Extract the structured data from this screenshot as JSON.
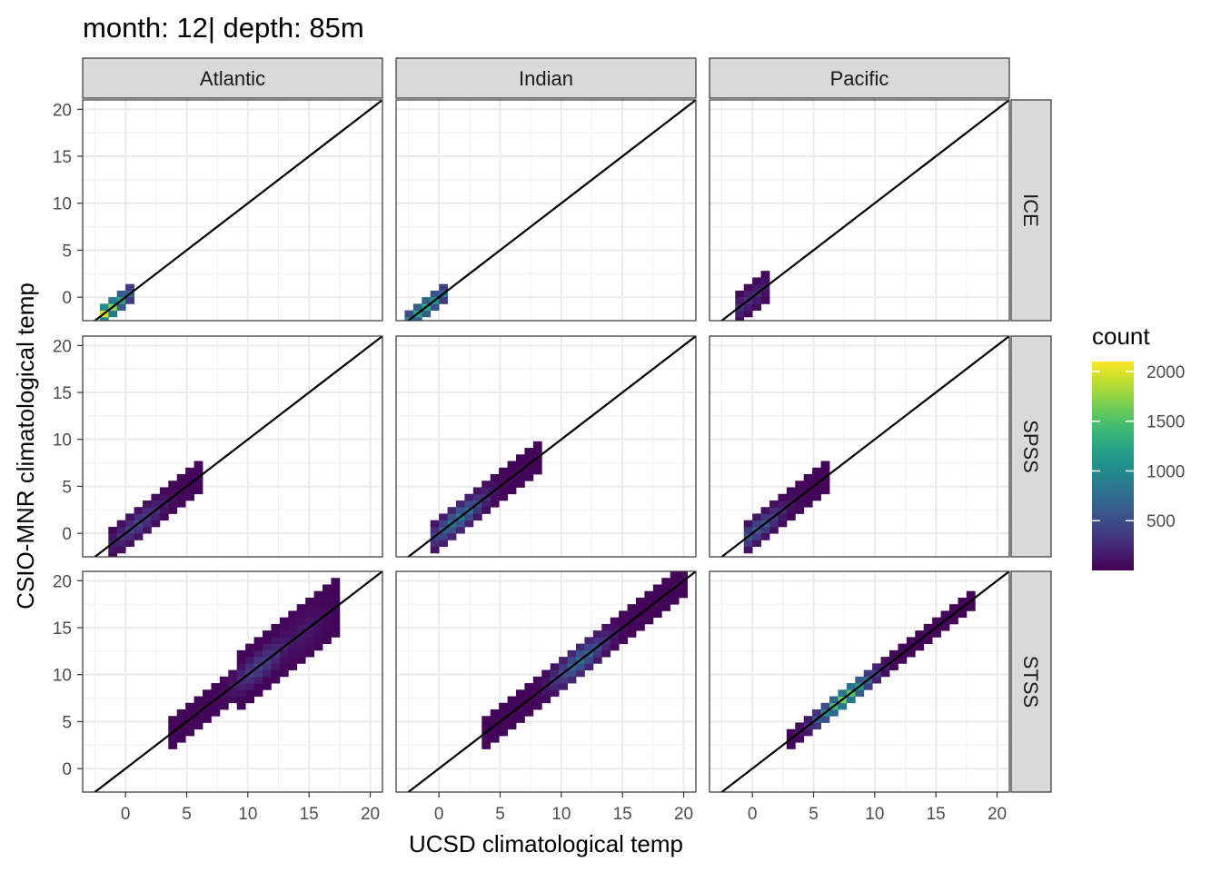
{
  "chart_data": {
    "type": "heatmap",
    "subtype": "binned-2d-histogram-facet-grid",
    "title": "month: 12| depth: 85m",
    "xlabel": "UCSD climatological temp",
    "ylabel": "CSIO-MNR climatological temp",
    "xlim": [
      -3.5,
      21
    ],
    "ylim": [
      -2.5,
      21
    ],
    "x_ticks": [
      0,
      5,
      10,
      15,
      20
    ],
    "y_ticks": [
      0,
      5,
      10,
      15,
      20
    ],
    "grid": true,
    "identity_line": true,
    "columns": [
      "Atlantic",
      "Indian",
      "Pacific"
    ],
    "rows": [
      "ICE",
      "SPSS",
      "STSS"
    ],
    "legend": {
      "title": "count",
      "position": "right",
      "colormap": "viridis",
      "range": [
        0,
        2100
      ],
      "ticks": [
        500,
        1000,
        1500,
        2000
      ],
      "tick_labels": [
        "500",
        "1000",
        "1500",
        "2000"
      ]
    },
    "panels": [
      {
        "row": "ICE",
        "col": "Atlantic",
        "bands": [
          {
            "x0": -2.2,
            "x1": 0.5,
            "hw": 1.0,
            "peak": 2000,
            "peak_at": -1.9
          }
        ]
      },
      {
        "row": "ICE",
        "col": "Indian",
        "bands": [
          {
            "x0": -2.8,
            "x1": 0.5,
            "hw": 1.0,
            "peak": 1300,
            "peak_at": -1.3
          }
        ]
      },
      {
        "row": "ICE",
        "col": "Pacific",
        "bands": [
          {
            "x0": -1.6,
            "x1": 1.5,
            "hw": 1.2,
            "peak": 300,
            "peak_at": -0.5
          }
        ]
      },
      {
        "row": "SPSS",
        "col": "Atlantic",
        "bands": [
          {
            "x0": -1.3,
            "x1": 6.5,
            "hw": 1.3,
            "peak": 450,
            "peak_at": 1.0
          }
        ]
      },
      {
        "row": "SPSS",
        "col": "Indian",
        "bands": [
          {
            "x0": -1.0,
            "x1": 8.5,
            "hw": 1.3,
            "peak": 900,
            "peak_at": 1.5
          }
        ]
      },
      {
        "row": "SPSS",
        "col": "Pacific",
        "bands": [
          {
            "x0": -1.0,
            "x1": 6.5,
            "hw": 1.2,
            "peak": 650,
            "peak_at": 0.3
          }
        ]
      },
      {
        "row": "STSS",
        "col": "Atlantic",
        "bands": [
          {
            "x0": 3.8,
            "x1": 17.5,
            "hw": 1.6,
            "peak": 450,
            "peak_at": 11.0
          },
          {
            "x0": 8.8,
            "x1": 17.5,
            "hw": 2.6,
            "peak": 150,
            "peak_at": 14.5
          }
        ]
      },
      {
        "row": "STSS",
        "col": "Indian",
        "bands": [
          {
            "x0": 3.8,
            "x1": 20.0,
            "hw": 1.4,
            "peak": 800,
            "peak_at": 11.5
          }
        ]
      },
      {
        "row": "STSS",
        "col": "Pacific",
        "bands": [
          {
            "x0": 3.0,
            "x1": 18.5,
            "hw": 1.0,
            "peak": 1650,
            "peak_at": 7.5
          }
        ]
      }
    ]
  }
}
